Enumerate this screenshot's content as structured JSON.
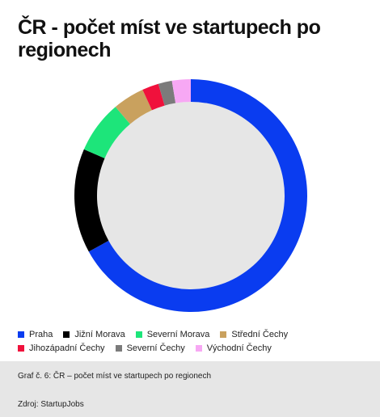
{
  "chart_data": {
    "type": "donut",
    "title": "ČR - počet míst ve startupech po regionech",
    "categories": [
      "Praha",
      "Jižní Morava",
      "Severní Morava",
      "Střední Čechy",
      "Jihozápadní Čechy",
      "Severní Čechy",
      "Východní Čechy"
    ],
    "values": [
      67,
      14.5,
      7.3,
      4.4,
      2.3,
      1.9,
      2.6
    ],
    "colors": [
      "#0a3cf0",
      "#000000",
      "#1de57a",
      "#c9a15e",
      "#f0113c",
      "#7b7b7b",
      "#f7a8f4"
    ],
    "caption": "Graf č. 6: ČR – počet míst ve startupech po regionech",
    "source": "Zdroj: StartupJobs"
  }
}
